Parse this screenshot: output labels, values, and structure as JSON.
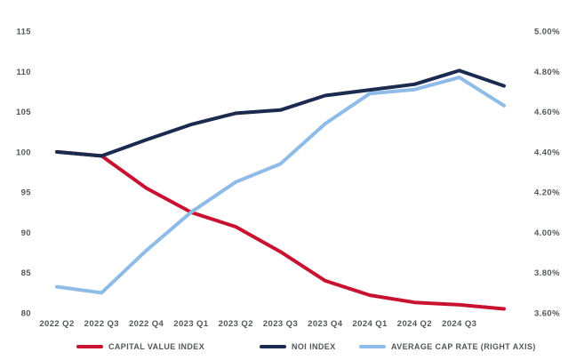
{
  "chart_data": {
    "type": "line",
    "title": "",
    "categories": [
      "2022 Q2",
      "2022 Q3",
      "2022 Q4",
      "2023 Q1",
      "2023 Q2",
      "2023 Q3",
      "2023 Q4",
      "2024 Q1",
      "2024 Q2",
      "2024 Q3",
      ""
    ],
    "series": [
      {
        "name": "CAPITAL VALUE INDEX",
        "axis": "left",
        "color": "#C9122F",
        "values": [
          100,
          99.5,
          95.5,
          92.5,
          90.7,
          87.6,
          84.0,
          82.2,
          81.3,
          81.0,
          80.5
        ]
      },
      {
        "name": "NOI INDEX",
        "axis": "left",
        "color": "#1B2A4F",
        "values": [
          100,
          99.5,
          101.5,
          103.4,
          104.8,
          105.2,
          107.0,
          107.7,
          108.4,
          110.1,
          108.2
        ]
      },
      {
        "name": "AVERAGE CAP RATE (RIGHT AXIS)",
        "axis": "right",
        "color": "#8FBBE8",
        "values": [
          3.73,
          3.7,
          3.91,
          4.1,
          4.25,
          4.34,
          4.54,
          4.69,
          4.71,
          4.77,
          4.63
        ]
      }
    ],
    "left_axis": {
      "min": 80,
      "max": 115,
      "ticks": [
        115,
        110,
        105,
        100,
        95,
        90,
        85,
        80
      ]
    },
    "right_axis": {
      "min": 3.6,
      "max": 5.0,
      "ticks": [
        "5.00%",
        "4.80%",
        "4.60%",
        "4.40%",
        "4.20%",
        "4.00%",
        "3.80%",
        "3.60%"
      ]
    },
    "grid": false,
    "legend_position": "bottom",
    "text_color": "#53565A",
    "background_color": "#FFFFFF"
  }
}
